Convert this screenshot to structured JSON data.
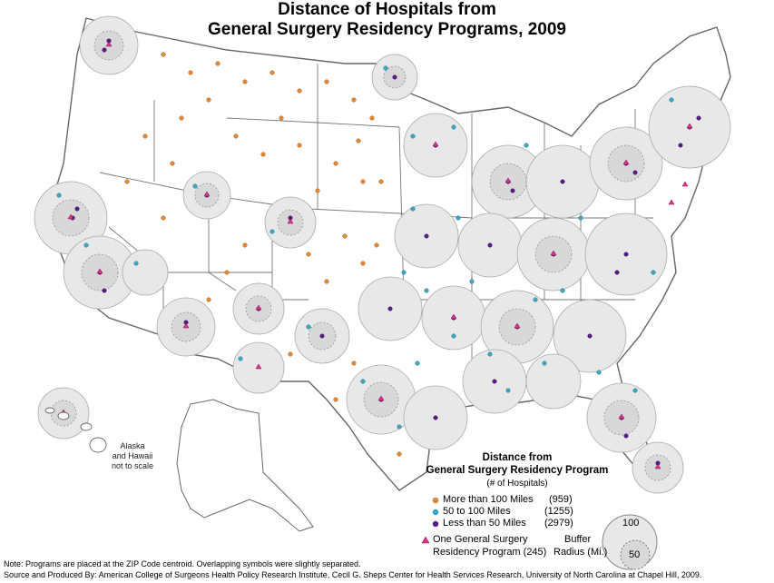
{
  "title_line1": "Distance of Hospitals from",
  "title_line2": "General Surgery Residency Programs, 2009",
  "inset_note": [
    "Alaska",
    "and Hawaii",
    "not to scale"
  ],
  "legend": {
    "title_line1": "Distance from",
    "title_line2": "General Surgery Residency Program",
    "subtitle": "(# of Hospitals)",
    "categories": [
      {
        "label": "More than 100 Miles",
        "count": "(959)",
        "color": "#e8892b"
      },
      {
        "label": "50 to 100 Miles",
        "count": "(1255)",
        "color": "#35aac9"
      },
      {
        "label": "Less than 50 Miles",
        "count": "(2979)",
        "color": "#5a1a8f"
      }
    ],
    "program_label_line1": "One General Surgery",
    "program_label_line2": "Residency Program (245)",
    "program_color": "#e0338a",
    "buffer_label_line1": "Buffer",
    "buffer_label_line2": "Radius (Mi.)",
    "buffer_outer": "100",
    "buffer_inner": "50"
  },
  "footer_line1": "Note: Programs are placed at the ZIP Code centroid. Overlapping symbols were slightly separated.",
  "footer_line2": "Source and Produced By: American College of Surgeons Health Policy Research Institute, Cecil G. Sheps Center for Health Services Research, University of North Carolina at Chapel Hill, 2009."
}
